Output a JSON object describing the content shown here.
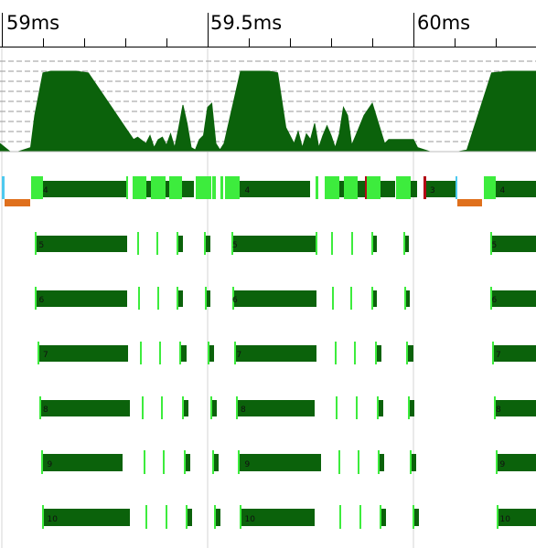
{
  "ruler": {
    "labels": [
      "59ms",
      "59.5ms",
      "60ms"
    ]
  },
  "colors": {
    "busy": "#0b620b",
    "event": "#3dec3d",
    "pause": "#df701d",
    "idle": "#4ec9ef",
    "alert": "#b20a15",
    "grid": "#d4d4d4"
  },
  "activity_chart": {
    "type": "area",
    "series": [
      {
        "x": [
          58.99,
          59.02,
          59.04,
          59.07,
          59.08,
          59.1,
          59.12,
          59.18,
          59.21,
          59.3,
          59.32,
          59.33,
          59.35,
          59.36,
          59.37,
          59.38,
          59.39,
          59.4,
          59.41,
          59.42,
          59.43,
          59.44,
          59.45,
          59.46,
          59.47,
          59.48,
          59.49,
          59.5,
          59.51,
          59.52,
          59.53,
          59.54,
          59.56,
          59.58,
          59.65,
          59.67,
          59.69,
          59.7,
          59.71,
          59.72,
          59.73,
          59.74,
          59.75,
          59.76,
          59.77,
          59.78,
          59.79,
          59.8,
          59.81,
          59.82,
          59.83,
          59.84,
          59.85,
          59.86,
          59.88,
          59.9,
          59.93,
          59.94,
          59.95,
          59.96,
          59.98,
          60.0,
          60.01,
          60.04,
          60.11,
          60.13,
          60.16,
          60.19,
          60.23,
          60.3
        ],
        "y": [
          0.1,
          0,
          0,
          0.05,
          0.45,
          0.98,
          1,
          1,
          0.98,
          0.3,
          0.15,
          0.18,
          0.1,
          0.2,
          0.05,
          0.15,
          0.18,
          0.08,
          0.22,
          0.05,
          0.3,
          0.58,
          0.35,
          0.05,
          0.02,
          0.15,
          0.2,
          0.55,
          0.6,
          0.1,
          0.02,
          0.1,
          0.55,
          1,
          1,
          0.98,
          0.3,
          0.2,
          0.1,
          0.25,
          0.05,
          0.22,
          0.15,
          0.35,
          0.05,
          0.2,
          0.32,
          0.2,
          0.05,
          0.22,
          0.55,
          0.45,
          0.08,
          0.2,
          0.45,
          0.6,
          0.1,
          0.15,
          0.15,
          0.15,
          0.15,
          0.15,
          0.05,
          0,
          0,
          0.02,
          0.5,
          0.98,
          1,
          1
        ]
      }
    ]
  },
  "tracks": [
    {
      "name": "track-main",
      "labels": [
        {
          "t": 59.1,
          "text": "4"
        },
        {
          "t": 59.59,
          "text": "4"
        },
        {
          "t": 60.04,
          "text": "3"
        },
        {
          "t": 60.21,
          "text": "4"
        }
      ]
    },
    {
      "name": "track-5",
      "labels": [
        {
          "t": 59.09,
          "text": "5"
        },
        {
          "t": 59.56,
          "text": "5"
        },
        {
          "t": 60.19,
          "text": "5"
        }
      ]
    },
    {
      "name": "track-6",
      "labels": [
        {
          "t": 59.09,
          "text": "6"
        },
        {
          "t": 59.56,
          "text": "6"
        },
        {
          "t": 60.19,
          "text": "6"
        }
      ]
    },
    {
      "name": "track-7",
      "labels": [
        {
          "t": 59.1,
          "text": "7"
        },
        {
          "t": 59.57,
          "text": "7"
        },
        {
          "t": 60.2,
          "text": "7"
        }
      ]
    },
    {
      "name": "track-8",
      "labels": [
        {
          "t": 59.1,
          "text": "8"
        },
        {
          "t": 59.58,
          "text": "8"
        },
        {
          "t": 60.2,
          "text": "8"
        }
      ]
    },
    {
      "name": "track-9",
      "labels": [
        {
          "t": 59.11,
          "text": "9"
        },
        {
          "t": 59.59,
          "text": "9"
        },
        {
          "t": 60.21,
          "text": "9"
        }
      ]
    },
    {
      "name": "track-10",
      "labels": [
        {
          "t": 59.11,
          "text": "10"
        },
        {
          "t": 59.59,
          "text": "10"
        },
        {
          "t": 60.21,
          "text": "10"
        }
      ]
    }
  ]
}
